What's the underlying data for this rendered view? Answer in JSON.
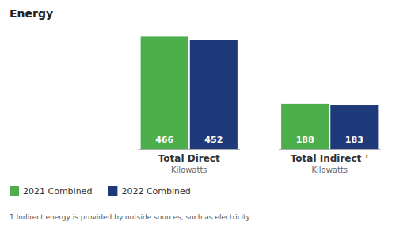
{
  "chart_data": {
    "type": "bar",
    "title": "Energy",
    "categories": [
      "Total Direct",
      "Total Indirect ¹"
    ],
    "series": [
      {
        "name": "2021 Combined",
        "color": "#4caf4c",
        "values": [
          466,
          188
        ]
      },
      {
        "name": "2022 Combined",
        "color": "#1e3a7a",
        "values": [
          452,
          183
        ]
      }
    ],
    "annotations": [
      "Kilowatts",
      "Kilowatts",
      "1  Indirect energy is provided by outside sources, such as electricity"
    ],
    "ylim": [
      0,
      520
    ],
    "tick_labels": false,
    "grid": false,
    "data_labels": true,
    "legend": "bottom-left"
  }
}
